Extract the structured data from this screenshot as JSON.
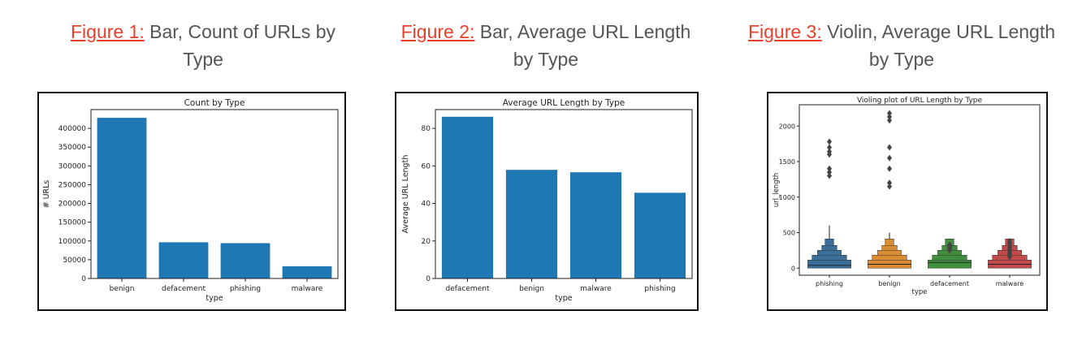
{
  "captions": [
    {
      "figure": "Figure 1:",
      "text": " Bar, Count of URLs by Type"
    },
    {
      "figure": "Figure 2:",
      "text": " Bar, Average URL Length by Type"
    },
    {
      "figure": "Figure 3:",
      "text": " Violin, Average URL Length by Type"
    }
  ],
  "colors": {
    "caption_text": "#555555",
    "figure_link": "#e8402a",
    "bar": "#1f77b4",
    "violin": [
      "#3a6f9a",
      "#d98c33",
      "#3f8f3f",
      "#c24a4a"
    ]
  },
  "chart_data": [
    {
      "type": "bar",
      "title": "Count by Type",
      "xlabel": "type",
      "ylabel": "# URLs",
      "categories": [
        "benign",
        "defacement",
        "phishing",
        "malware"
      ],
      "values": [
        428103,
        96457,
        94111,
        32520
      ],
      "ylim": [
        0,
        450000
      ],
      "yticks": [
        0,
        50000,
        100000,
        150000,
        200000,
        250000,
        300000,
        350000,
        400000
      ],
      "grid": false
    },
    {
      "type": "bar",
      "title": "Average URL Length by Type",
      "xlabel": "type",
      "ylabel": "Average URL Length",
      "categories": [
        "defacement",
        "benign",
        "malware",
        "phishing"
      ],
      "values": [
        86.2,
        57.9,
        56.6,
        45.7
      ],
      "ylim": [
        0,
        90
      ],
      "yticks": [
        0,
        20,
        40,
        60,
        80
      ],
      "grid": false
    },
    {
      "type": "violin",
      "title": "Violing plot of URL Length by Type",
      "xlabel": "type",
      "ylabel": "url_length",
      "categories": [
        "phishing",
        "benign",
        "defacement",
        "malware"
      ],
      "ylim": [
        -100,
        2300
      ],
      "yticks": [
        0,
        500,
        1000,
        1500,
        2000
      ],
      "whisker_max": [
        600,
        500,
        240,
        150
      ],
      "medians": [
        40,
        55,
        80,
        55
      ],
      "outliers": [
        [
          1780,
          1700,
          1640,
          1600,
          1400,
          1350,
          1300
        ],
        [
          2180,
          2130,
          2080,
          1700,
          1550,
          1400,
          1200,
          1150
        ],
        [
          330,
          310,
          290,
          270,
          250
        ],
        [
          380,
          350,
          320,
          290,
          260,
          230,
          200,
          180,
          160
        ]
      ],
      "grid": false
    }
  ]
}
